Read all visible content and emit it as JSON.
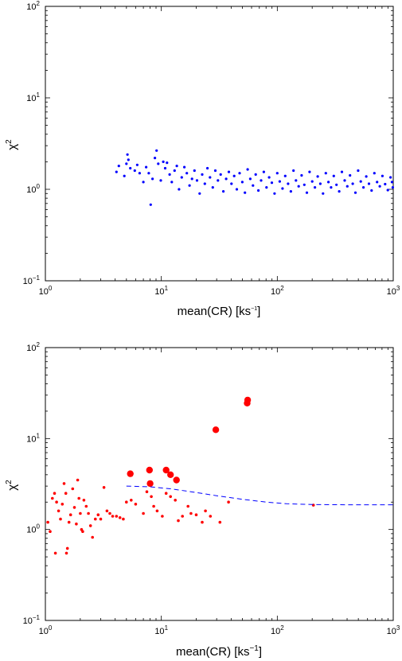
{
  "chart_data": [
    {
      "type": "scatter",
      "xlabel": "mean(CR) [ks",
      "xlabel_exp": "−1",
      "xlabel_end": "]",
      "ylabel": "χ",
      "ylabel_exp": "2",
      "xscale": "log",
      "yscale": "log",
      "xlim": [
        1,
        1000
      ],
      "ylim": [
        0.1,
        100
      ],
      "xticks": [
        {
          "base": "10",
          "exp": "0"
        },
        {
          "base": "10",
          "exp": "1"
        },
        {
          "base": "10",
          "exp": "2"
        },
        {
          "base": "10",
          "exp": "3"
        }
      ],
      "yticks": [
        {
          "base": "10",
          "exp": "−1"
        },
        {
          "base": "10",
          "exp": "0"
        },
        {
          "base": "10",
          "exp": "1"
        },
        {
          "base": "10",
          "exp": "2"
        }
      ],
      "grid": false,
      "colors": {
        "points": "#0000ff"
      },
      "series": [
        {
          "style": "blue-dots",
          "points": [
            [
              4.1,
              1.55
            ],
            [
              4.3,
              1.8
            ],
            [
              4.8,
              1.4
            ],
            [
              5.0,
              1.9
            ],
            [
              5.1,
              2.4
            ],
            [
              5.2,
              2.1
            ],
            [
              5.4,
              1.7
            ],
            [
              5.9,
              1.6
            ],
            [
              6.2,
              1.85
            ],
            [
              6.5,
              1.5
            ],
            [
              7.0,
              1.2
            ],
            [
              7.4,
              1.75
            ],
            [
              7.8,
              1.5
            ],
            [
              8.1,
              0.68
            ],
            [
              8.4,
              1.3
            ],
            [
              8.8,
              2.2
            ],
            [
              9.1,
              2.65
            ],
            [
              9.4,
              1.9
            ],
            [
              9.9,
              1.25
            ],
            [
              10.4,
              2.0
            ],
            [
              10.8,
              1.7
            ],
            [
              11.2,
              1.95
            ],
            [
              11.8,
              1.45
            ],
            [
              12.3,
              1.2
            ],
            [
              13.0,
              1.6
            ],
            [
              13.6,
              1.8
            ],
            [
              14.2,
              1.0
            ],
            [
              15.0,
              1.35
            ],
            [
              15.8,
              1.75
            ],
            [
              16.6,
              1.5
            ],
            [
              17.5,
              1.1
            ],
            [
              18.4,
              1.3
            ],
            [
              19.3,
              1.6
            ],
            [
              20.3,
              1.25
            ],
            [
              21.4,
              0.9
            ],
            [
              22.5,
              1.45
            ],
            [
              23.7,
              1.15
            ],
            [
              25.0,
              1.7
            ],
            [
              26.3,
              1.35
            ],
            [
              27.8,
              1.05
            ],
            [
              29.2,
              1.6
            ],
            [
              30.8,
              1.25
            ],
            [
              32.5,
              1.45
            ],
            [
              34.3,
              0.95
            ],
            [
              36.2,
              1.3
            ],
            [
              38.2,
              1.55
            ],
            [
              40.3,
              1.15
            ],
            [
              42.5,
              1.4
            ],
            [
              44.8,
              1.0
            ],
            [
              47.3,
              1.5
            ],
            [
              49.9,
              1.2
            ],
            [
              52.6,
              0.92
            ],
            [
              55.5,
              1.65
            ],
            [
              58.5,
              1.3
            ],
            [
              61.7,
              1.1
            ],
            [
              65.1,
              1.45
            ],
            [
              68.7,
              0.97
            ],
            [
              72.5,
              1.25
            ],
            [
              76.5,
              1.55
            ],
            [
              80.7,
              1.05
            ],
            [
              85.1,
              1.35
            ],
            [
              89.8,
              1.18
            ],
            [
              94.7,
              0.9
            ],
            [
              99.9,
              1.5
            ],
            [
              105,
              1.22
            ],
            [
              111,
              1.02
            ],
            [
              117,
              1.4
            ],
            [
              124,
              1.15
            ],
            [
              131,
              0.95
            ],
            [
              138,
              1.6
            ],
            [
              145,
              1.25
            ],
            [
              153,
              1.08
            ],
            [
              162,
              1.42
            ],
            [
              171,
              1.12
            ],
            [
              180,
              0.92
            ],
            [
              190,
              1.55
            ],
            [
              200,
              1.22
            ],
            [
              211,
              1.05
            ],
            [
              223,
              1.38
            ],
            [
              235,
              1.15
            ],
            [
              248,
              0.9
            ],
            [
              262,
              1.5
            ],
            [
              276,
              1.2
            ],
            [
              291,
              1.05
            ],
            [
              307,
              1.4
            ],
            [
              324,
              1.12
            ],
            [
              342,
              0.95
            ],
            [
              361,
              1.55
            ],
            [
              381,
              1.25
            ],
            [
              402,
              1.08
            ],
            [
              424,
              1.42
            ],
            [
              447,
              1.15
            ],
            [
              472,
              0.92
            ],
            [
              498,
              1.6
            ],
            [
              525,
              1.22
            ],
            [
              554,
              1.05
            ],
            [
              585,
              1.38
            ],
            [
              617,
              1.15
            ],
            [
              651,
              0.97
            ],
            [
              687,
              1.5
            ],
            [
              725,
              1.2
            ],
            [
              765,
              1.08
            ],
            [
              807,
              1.4
            ],
            [
              851,
              1.14
            ],
            [
              898,
              0.98
            ],
            [
              948,
              1.35
            ],
            [
              975,
              1.2
            ],
            [
              990,
              1.05
            ]
          ]
        }
      ]
    },
    {
      "type": "scatter",
      "xlabel": "mean(CR) [ks",
      "xlabel_exp": "−1",
      "xlabel_end": "]",
      "ylabel": "χ",
      "ylabel_exp": "2",
      "xscale": "log",
      "yscale": "log",
      "xlim": [
        1,
        1000
      ],
      "ylim": [
        0.1,
        100
      ],
      "xticks": [
        {
          "base": "10",
          "exp": "0"
        },
        {
          "base": "10",
          "exp": "1"
        },
        {
          "base": "10",
          "exp": "2"
        },
        {
          "base": "10",
          "exp": "3"
        }
      ],
      "yticks": [
        {
          "base": "10",
          "exp": "−1"
        },
        {
          "base": "10",
          "exp": "0"
        },
        {
          "base": "10",
          "exp": "1"
        },
        {
          "base": "10",
          "exp": "2"
        }
      ],
      "grid": false,
      "colors": {
        "points": "#ff0000",
        "curve": "#0000ff"
      },
      "series": [
        {
          "style": "red-small",
          "points": [
            [
              1.05,
              1.2
            ],
            [
              1.1,
              0.95
            ],
            [
              1.15,
              2.2
            ],
            [
              1.2,
              2.5
            ],
            [
              1.25,
              2.0
            ],
            [
              1.22,
              0.55
            ],
            [
              1.3,
              1.6
            ],
            [
              1.35,
              1.3
            ],
            [
              1.4,
              1.9
            ],
            [
              1.45,
              3.2
            ],
            [
              1.5,
              2.5
            ],
            [
              1.52,
              0.55
            ],
            [
              1.55,
              0.62
            ],
            [
              1.6,
              1.2
            ],
            [
              1.65,
              1.45
            ],
            [
              1.72,
              2.8
            ],
            [
              1.78,
              1.75
            ],
            [
              1.85,
              1.15
            ],
            [
              1.9,
              3.5
            ],
            [
              1.95,
              2.2
            ],
            [
              2.0,
              1.5
            ],
            [
              2.05,
              1.0
            ],
            [
              2.1,
              0.95
            ],
            [
              2.15,
              2.1
            ],
            [
              2.25,
              1.8
            ],
            [
              2.35,
              1.5
            ],
            [
              2.45,
              1.1
            ],
            [
              2.55,
              0.82
            ],
            [
              2.7,
              1.3
            ],
            [
              2.85,
              1.45
            ],
            [
              3.0,
              1.3
            ],
            [
              3.2,
              2.9
            ],
            [
              3.4,
              1.6
            ],
            [
              3.6,
              1.5
            ],
            [
              3.8,
              1.4
            ],
            [
              4.1,
              1.4
            ],
            [
              4.4,
              1.35
            ],
            [
              4.7,
              1.3
            ],
            [
              5.0,
              2.0
            ],
            [
              5.5,
              2.1
            ],
            [
              6.0,
              1.9
            ],
            [
              7.0,
              1.5
            ],
            [
              7.5,
              2.6
            ],
            [
              8.2,
              2.3
            ],
            [
              8.6,
              1.8
            ],
            [
              9.2,
              1.6
            ],
            [
              10.2,
              1.4
            ],
            [
              11.0,
              2.5
            ],
            [
              12.0,
              2.3
            ],
            [
              13.2,
              2.1
            ],
            [
              14.0,
              1.25
            ],
            [
              15.2,
              1.4
            ],
            [
              17.0,
              1.8
            ],
            [
              18.0,
              1.5
            ],
            [
              20.0,
              1.45
            ],
            [
              22.5,
              1.2
            ],
            [
              24.0,
              1.6
            ],
            [
              26.5,
              1.4
            ],
            [
              32.0,
              1.2
            ],
            [
              38.0,
              2.0
            ],
            [
              205,
              1.85
            ]
          ]
        },
        {
          "style": "red-large",
          "points": [
            [
              5.4,
              4.1
            ],
            [
              7.9,
              4.5
            ],
            [
              8.0,
              3.2
            ],
            [
              11.0,
              4.5
            ],
            [
              12.0,
              4.0
            ],
            [
              13.5,
              3.5
            ],
            [
              29.5,
              12.5
            ],
            [
              55.0,
              24.5
            ],
            [
              55.5,
              26.5
            ]
          ]
        },
        {
          "style": "blue-dashed-line",
          "points": [
            [
              5,
              3.0
            ],
            [
              8,
              2.95
            ],
            [
              12,
              2.8
            ],
            [
              18,
              2.6
            ],
            [
              30,
              2.35
            ],
            [
              50,
              2.15
            ],
            [
              80,
              2.0
            ],
            [
              120,
              1.92
            ],
            [
              200,
              1.88
            ],
            [
              400,
              1.87
            ],
            [
              1000,
              1.87
            ]
          ]
        }
      ]
    }
  ]
}
